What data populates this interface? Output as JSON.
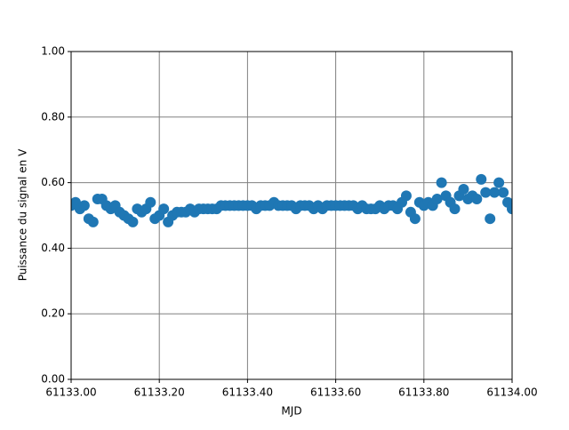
{
  "chart_data": {
    "type": "scatter",
    "xlabel": "MJD",
    "ylabel": "Puissance du signal en V",
    "color": "#1f77b4",
    "grid": true,
    "xlim": [
      61133.0,
      61134.0
    ],
    "xticks": [
      {
        "value": 61133.0,
        "label": "61133.00"
      },
      {
        "value": 61133.2,
        "label": "61133.20"
      },
      {
        "value": 61133.4,
        "label": "61133.40"
      },
      {
        "value": 61133.6,
        "label": "61133.60"
      },
      {
        "value": 61133.8,
        "label": "61133.80"
      },
      {
        "value": 61134.0,
        "label": "61134.00"
      }
    ],
    "ylim": [
      0,
      1
    ],
    "yticks": [
      {
        "value": 0,
        "label": "0.00"
      },
      {
        "value": 0.2,
        "label": "0.20"
      },
      {
        "value": 0.4,
        "label": "0.40"
      },
      {
        "value": 0.6,
        "label": "0.60"
      },
      {
        "value": 0.8,
        "label": "0.80"
      },
      {
        "value": 1,
        "label": "1.00"
      }
    ],
    "x": [
      61133.0,
      61133.01,
      61133.02,
      61133.03,
      61133.04,
      61133.05,
      61133.06,
      61133.07,
      61133.08,
      61133.09,
      61133.1,
      61133.11,
      61133.12,
      61133.13,
      61133.14,
      61133.15,
      61133.16,
      61133.17,
      61133.18,
      61133.19,
      61133.2,
      61133.21,
      61133.22,
      61133.23,
      61133.24,
      61133.25,
      61133.26,
      61133.27,
      61133.28,
      61133.29,
      61133.3,
      61133.31,
      61133.32,
      61133.33,
      61133.34,
      61133.35,
      61133.36,
      61133.37,
      61133.38,
      61133.39,
      61133.4,
      61133.41,
      61133.42,
      61133.43,
      61133.44,
      61133.45,
      61133.46,
      61133.47,
      61133.48,
      61133.49,
      61133.5,
      61133.51,
      61133.52,
      61133.53,
      61133.54,
      61133.55,
      61133.56,
      61133.57,
      61133.58,
      61133.59,
      61133.6,
      61133.61,
      61133.62,
      61133.63,
      61133.64,
      61133.65,
      61133.66,
      61133.67,
      61133.68,
      61133.69,
      61133.7,
      61133.71,
      61133.72,
      61133.73,
      61133.74,
      61133.75,
      61133.76,
      61133.77,
      61133.78,
      61133.79,
      61133.8,
      61133.81,
      61133.82,
      61133.83,
      61133.84,
      61133.85,
      61133.86,
      61133.87,
      61133.88,
      61133.89,
      61133.9,
      61133.91,
      61133.92,
      61133.93,
      61133.94,
      61133.95,
      61133.96,
      61133.97,
      61133.98,
      61133.99,
      61134.0
    ],
    "values": [
      0.53,
      0.54,
      0.52,
      0.53,
      0.49,
      0.48,
      0.55,
      0.55,
      0.53,
      0.52,
      0.53,
      0.51,
      0.5,
      0.49,
      0.48,
      0.52,
      0.51,
      0.52,
      0.54,
      0.49,
      0.5,
      0.52,
      0.48,
      0.5,
      0.51,
      0.51,
      0.51,
      0.52,
      0.51,
      0.52,
      0.52,
      0.52,
      0.52,
      0.52,
      0.53,
      0.53,
      0.53,
      0.53,
      0.53,
      0.53,
      0.53,
      0.53,
      0.52,
      0.53,
      0.53,
      0.53,
      0.54,
      0.53,
      0.53,
      0.53,
      0.53,
      0.52,
      0.53,
      0.53,
      0.53,
      0.52,
      0.53,
      0.52,
      0.53,
      0.53,
      0.53,
      0.53,
      0.53,
      0.53,
      0.53,
      0.52,
      0.53,
      0.52,
      0.52,
      0.52,
      0.53,
      0.52,
      0.53,
      0.53,
      0.52,
      0.54,
      0.56,
      0.51,
      0.49,
      0.54,
      0.53,
      0.54,
      0.53,
      0.55,
      0.6,
      0.56,
      0.54,
      0.52,
      0.56,
      0.58,
      0.55,
      0.56,
      0.55,
      0.61,
      0.57,
      0.49,
      0.57,
      0.6,
      0.57,
      0.54,
      0.52
    ]
  }
}
